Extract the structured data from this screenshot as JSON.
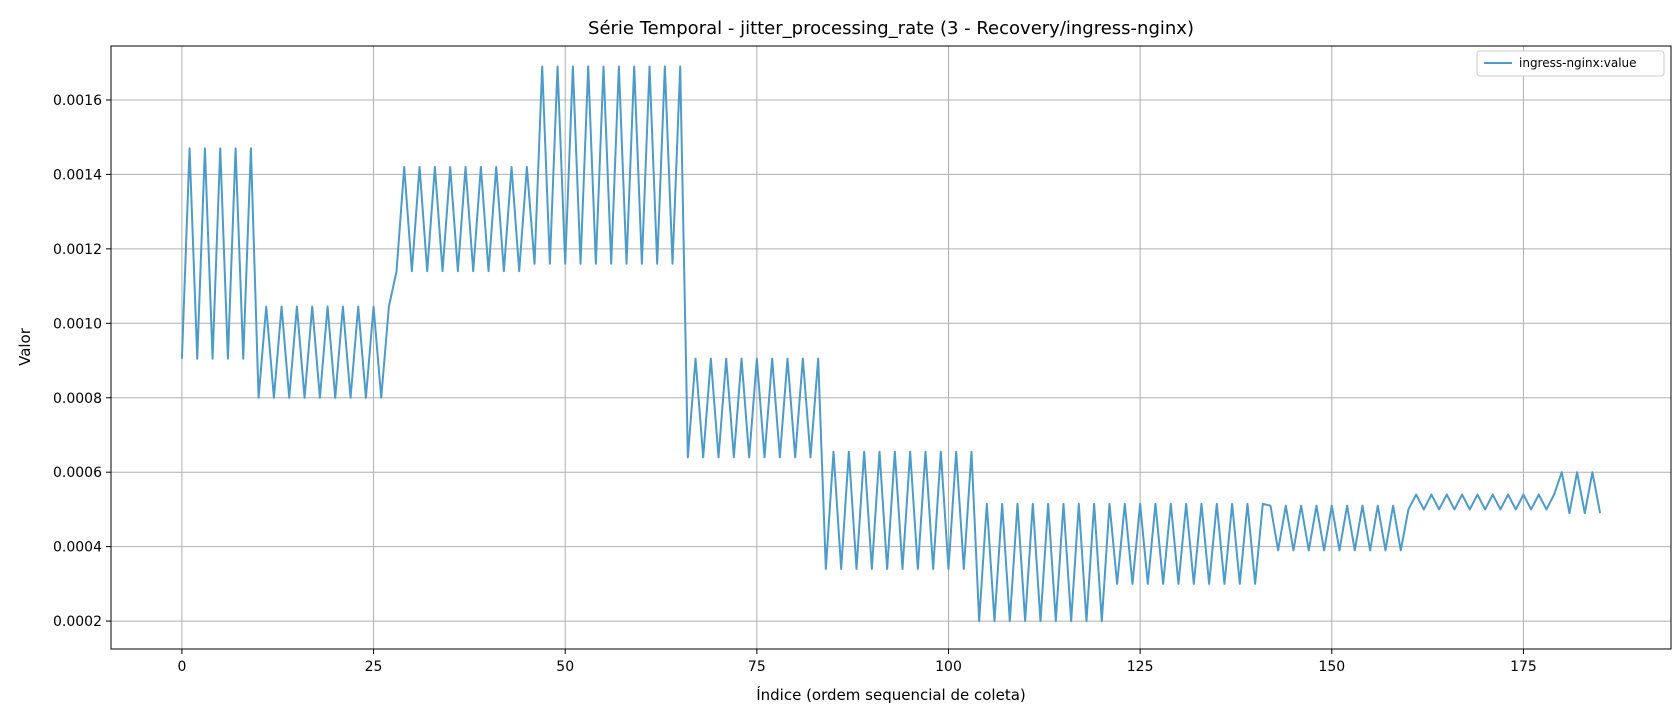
{
  "chart_data": {
    "type": "line",
    "title": "Série Temporal - jitter_processing_rate (3 - Recovery/ingress-nginx)",
    "xlabel": "Índice (ordem sequencial de coleta)",
    "ylabel": "Valor",
    "xlim": [
      -9.25,
      194.25
    ],
    "ylim": [
      0.000125,
      0.001745
    ],
    "xticks": [
      0,
      25,
      50,
      75,
      100,
      125,
      150,
      175
    ],
    "yticks": [
      0.0002,
      0.0004,
      0.0006,
      0.0008,
      0.001,
      0.0012,
      0.0014,
      0.0016
    ],
    "ytick_labels": [
      "0.0002",
      "0.0004",
      "0.0006",
      "0.0008",
      "0.0010",
      "0.0012",
      "0.0014",
      "0.0016"
    ],
    "grid": true,
    "legend_position": "top-right",
    "colors": {
      "series": "#4c9bc9",
      "grid": "#b0b0b0"
    },
    "series": [
      {
        "name": "ingress-nginx:value",
        "x_start": 0,
        "values": [
          0.000905,
          0.00147,
          0.000905,
          0.00147,
          0.000905,
          0.00147,
          0.000905,
          0.00147,
          0.000905,
          0.00147,
          0.0008,
          0.001045,
          0.0008,
          0.001045,
          0.0008,
          0.001045,
          0.0008,
          0.001045,
          0.0008,
          0.001045,
          0.0008,
          0.001045,
          0.0008,
          0.001045,
          0.0008,
          0.001045,
          0.0008,
          0.001045,
          0.00114,
          0.00142,
          0.00114,
          0.00142,
          0.00114,
          0.00142,
          0.00114,
          0.00142,
          0.00114,
          0.00142,
          0.00114,
          0.00142,
          0.00114,
          0.00142,
          0.00114,
          0.00142,
          0.00114,
          0.00142,
          0.00116,
          0.00169,
          0.00116,
          0.00169,
          0.00116,
          0.00169,
          0.00116,
          0.00169,
          0.00116,
          0.00169,
          0.00116,
          0.00169,
          0.00116,
          0.00169,
          0.00116,
          0.00169,
          0.00116,
          0.00169,
          0.00116,
          0.00169,
          0.00064,
          0.000905,
          0.00064,
          0.000905,
          0.00064,
          0.000905,
          0.00064,
          0.000905,
          0.00064,
          0.000905,
          0.00064,
          0.000905,
          0.00064,
          0.000905,
          0.00064,
          0.000905,
          0.00064,
          0.000905,
          0.00034,
          0.000655,
          0.00034,
          0.000655,
          0.00034,
          0.000655,
          0.00034,
          0.000655,
          0.00034,
          0.000655,
          0.00034,
          0.000655,
          0.00034,
          0.000655,
          0.00034,
          0.000655,
          0.00034,
          0.000655,
          0.00034,
          0.000655,
          0.0002,
          0.000515,
          0.0002,
          0.000515,
          0.0002,
          0.000515,
          0.0002,
          0.000515,
          0.0002,
          0.000515,
          0.0002,
          0.000515,
          0.0002,
          0.000515,
          0.0002,
          0.000515,
          0.0002,
          0.000515,
          0.0003,
          0.000515,
          0.0003,
          0.000515,
          0.0003,
          0.000515,
          0.0003,
          0.000515,
          0.0003,
          0.000515,
          0.0003,
          0.000515,
          0.0003,
          0.000515,
          0.0003,
          0.000515,
          0.0003,
          0.000515,
          0.0003,
          0.000515,
          0.00051,
          0.00039,
          0.00051,
          0.00039,
          0.00051,
          0.00039,
          0.00051,
          0.00039,
          0.00051,
          0.00039,
          0.00051,
          0.00039,
          0.00051,
          0.00039,
          0.00051,
          0.00039,
          0.00051,
          0.00039,
          0.0005,
          0.00054,
          0.0005,
          0.00054,
          0.0005,
          0.00054,
          0.0005,
          0.00054,
          0.0005,
          0.00054,
          0.0005,
          0.00054,
          0.0005,
          0.00054,
          0.0005,
          0.00054,
          0.0005,
          0.00054,
          0.0005,
          0.00054,
          0.0006,
          0.00049,
          0.0006,
          0.00049,
          0.0006,
          0.00049
        ]
      }
    ]
  }
}
